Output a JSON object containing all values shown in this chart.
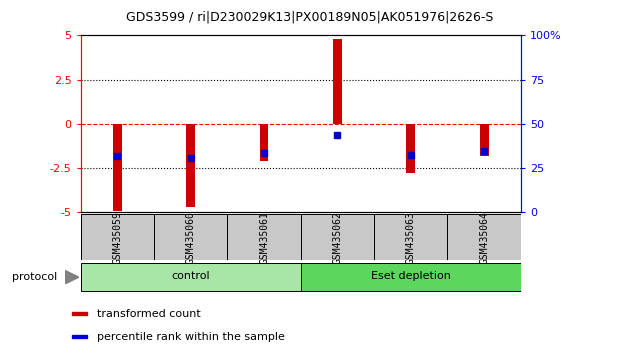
{
  "title": "GDS3599 / ri|D230029K13|PX00189N05|AK051976|2626-S",
  "samples": [
    "GSM435059",
    "GSM435060",
    "GSM435061",
    "GSM435062",
    "GSM435063",
    "GSM435064"
  ],
  "red_bars": [
    -4.9,
    -4.7,
    -2.1,
    4.8,
    -2.8,
    -1.8
  ],
  "blue_markers": [
    -1.8,
    -1.9,
    -1.65,
    -0.65,
    -1.75,
    -1.55
  ],
  "ylim_left": [
    -5,
    5
  ],
  "ylim_right": [
    0,
    100
  ],
  "yticks_left": [
    -5,
    -2.5,
    0,
    2.5,
    5
  ],
  "yticks_right": [
    0,
    25,
    50,
    75,
    100
  ],
  "ytick_labels_right": [
    "0",
    "25",
    "50",
    "75",
    "100%"
  ],
  "protocol_label": "protocol",
  "red_color": "#CC0000",
  "blue_color": "#0000CC",
  "legend_items": [
    {
      "color": "#CC0000",
      "label": "transformed count"
    },
    {
      "color": "#0000CC",
      "label": "percentile rank within the sample"
    }
  ],
  "bar_width": 0.12,
  "label_area_bg": "#C8C8C8",
  "group_colors": [
    "#90EE90",
    "#4CBB47"
  ],
  "group_labels": [
    "control",
    "Eset depletion"
  ],
  "group_splits": [
    3,
    3
  ]
}
